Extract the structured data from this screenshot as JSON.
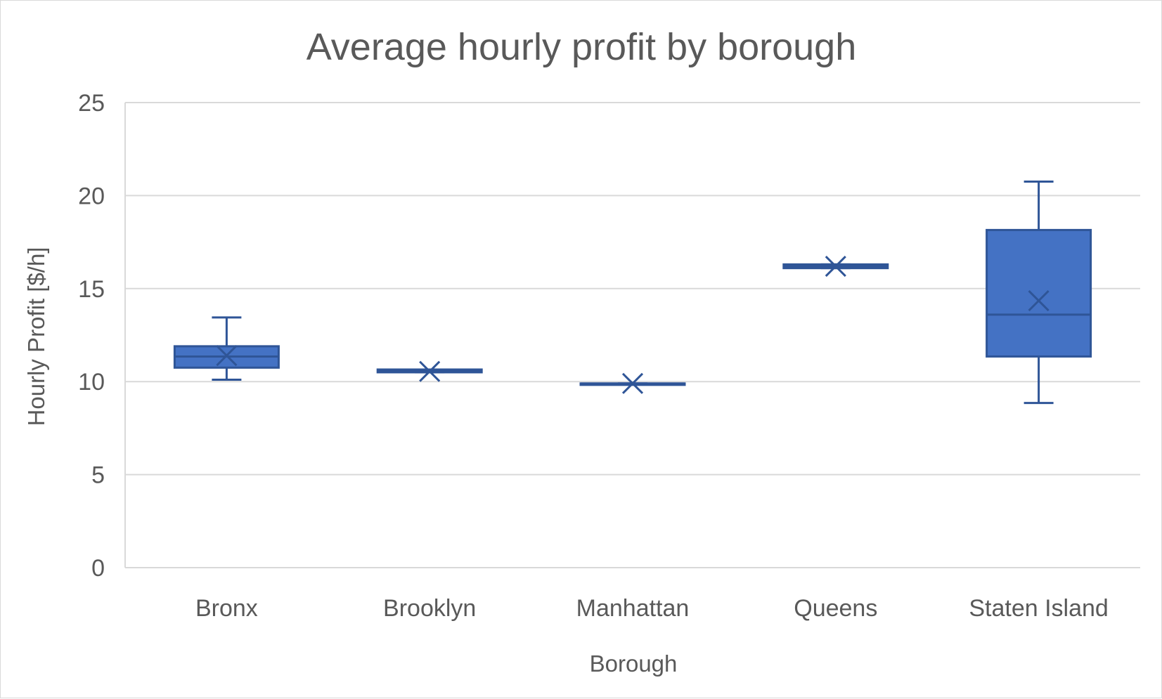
{
  "chart_data": {
    "type": "box",
    "title": "Average hourly profit by borough",
    "xlabel": "Borough",
    "ylabel": "Hourly Profit [$/h]",
    "ylim": [
      0,
      25
    ],
    "yticks": [
      "0",
      "5",
      "10",
      "15",
      "20",
      "25"
    ],
    "grid": true,
    "color": "#4472c4",
    "edge_color": "#2f5597",
    "categories": [
      "Bronx",
      "Brooklyn",
      "Manhattan",
      "Queens",
      "Staten Island"
    ],
    "boxes": [
      {
        "category": "Bronx",
        "min": 10.1,
        "q1": 10.75,
        "median": 11.35,
        "q3": 11.9,
        "max": 13.45,
        "mean": 11.4
      },
      {
        "category": "Brooklyn",
        "min": 10.5,
        "q1": 10.5,
        "median": 10.55,
        "q3": 10.65,
        "max": 10.65,
        "mean": 10.55
      },
      {
        "category": "Manhattan",
        "min": 9.9,
        "q1": 9.9,
        "median": 9.9,
        "q3": 9.9,
        "max": 9.9,
        "mean": 9.9
      },
      {
        "category": "Queens",
        "min": 16.1,
        "q1": 16.1,
        "median": 16.2,
        "q3": 16.3,
        "max": 16.3,
        "mean": 16.2
      },
      {
        "category": "Staten Island",
        "min": 8.85,
        "q1": 11.35,
        "median": 13.6,
        "q3": 18.15,
        "max": 20.75,
        "mean": 14.35
      }
    ]
  }
}
